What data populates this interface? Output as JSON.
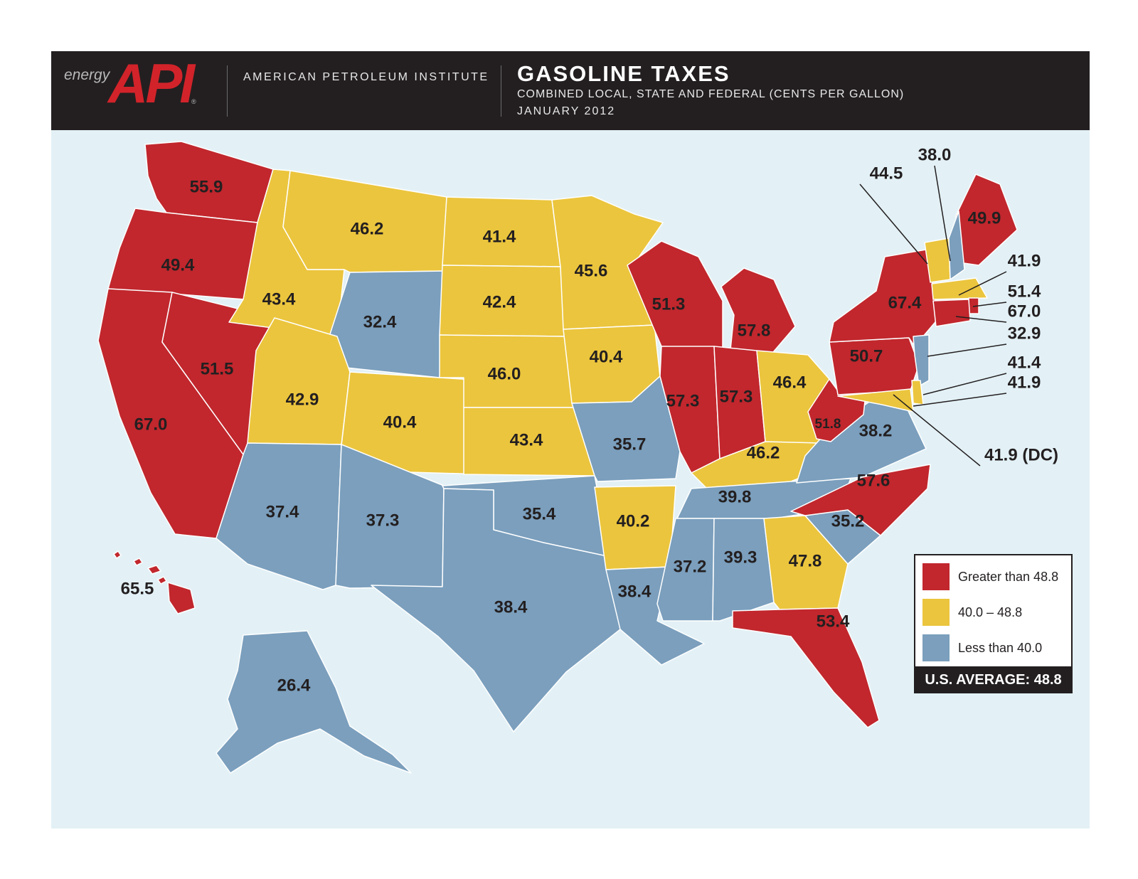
{
  "header": {
    "logo_word": "energy",
    "logo_mark": "API",
    "logo_registered": "®",
    "organization": "AMERICAN PETROLEUM INSTITUTE",
    "title": "GASOLINE TAXES",
    "subtitle": "COMBINED LOCAL, STATE AND FEDERAL (CENTS PER GALLON)",
    "date": "JANUARY 2012"
  },
  "colors": {
    "greater": "#c1272d",
    "middle": "#ebc53d",
    "less": "#7b9fbd",
    "water": "#e3f1f6",
    "header_bg": "#231f20"
  },
  "legend": {
    "items": [
      {
        "label": "Greater than 48.8",
        "category": "greater"
      },
      {
        "label": "40.0 – 48.8",
        "category": "middle"
      },
      {
        "label": "Less than 40.0",
        "category": "less"
      }
    ],
    "average": "U.S. AVERAGE: 48.8"
  },
  "states": [
    {
      "id": "WA",
      "value": "55.9",
      "category": "greater"
    },
    {
      "id": "OR",
      "value": "49.4",
      "category": "greater"
    },
    {
      "id": "CA",
      "value": "67.0",
      "category": "greater"
    },
    {
      "id": "NV",
      "value": "51.5",
      "category": "greater"
    },
    {
      "id": "ID",
      "value": "43.4",
      "category": "middle"
    },
    {
      "id": "MT",
      "value": "46.2",
      "category": "middle"
    },
    {
      "id": "WY",
      "value": "32.4",
      "category": "less"
    },
    {
      "id": "UT",
      "value": "42.9",
      "category": "middle"
    },
    {
      "id": "CO",
      "value": "40.4",
      "category": "middle"
    },
    {
      "id": "AZ",
      "value": "37.4",
      "category": "less"
    },
    {
      "id": "NM",
      "value": "37.3",
      "category": "less"
    },
    {
      "id": "ND",
      "value": "41.4",
      "category": "middle"
    },
    {
      "id": "SD",
      "value": "42.4",
      "category": "middle"
    },
    {
      "id": "NE",
      "value": "46.0",
      "category": "middle"
    },
    {
      "id": "KS",
      "value": "43.4",
      "category": "middle"
    },
    {
      "id": "OK",
      "value": "35.4",
      "category": "less"
    },
    {
      "id": "TX",
      "value": "38.4",
      "category": "less"
    },
    {
      "id": "MN",
      "value": "45.6",
      "category": "middle"
    },
    {
      "id": "IA",
      "value": "40.4",
      "category": "middle"
    },
    {
      "id": "MO",
      "value": "35.7",
      "category": "less"
    },
    {
      "id": "AR",
      "value": "40.2",
      "category": "middle"
    },
    {
      "id": "LA",
      "value": "38.4",
      "category": "less"
    },
    {
      "id": "WI",
      "value": "51.3",
      "category": "greater"
    },
    {
      "id": "IL",
      "value": "57.3",
      "category": "greater"
    },
    {
      "id": "MI",
      "value": "57.8",
      "category": "greater"
    },
    {
      "id": "IN",
      "value": "57.3",
      "category": "greater"
    },
    {
      "id": "OH",
      "value": "46.4",
      "category": "middle"
    },
    {
      "id": "KY",
      "value": "46.2",
      "category": "middle"
    },
    {
      "id": "TN",
      "value": "39.8",
      "category": "less"
    },
    {
      "id": "MS",
      "value": "37.2",
      "category": "less"
    },
    {
      "id": "AL",
      "value": "39.3",
      "category": "less"
    },
    {
      "id": "GA",
      "value": "47.8",
      "category": "middle"
    },
    {
      "id": "FL",
      "value": "53.4",
      "category": "greater"
    },
    {
      "id": "SC",
      "value": "35.2",
      "category": "less"
    },
    {
      "id": "NC",
      "value": "57.6",
      "category": "greater"
    },
    {
      "id": "VA",
      "value": "38.2",
      "category": "less"
    },
    {
      "id": "WV",
      "value": "51.8",
      "category": "greater"
    },
    {
      "id": "PA",
      "value": "50.7",
      "category": "greater"
    },
    {
      "id": "NY",
      "value": "67.4",
      "category": "greater"
    },
    {
      "id": "ME",
      "value": "49.9",
      "category": "greater"
    },
    {
      "id": "VT",
      "value": "44.5",
      "category": "middle"
    },
    {
      "id": "NH",
      "value": "38.0",
      "category": "less"
    },
    {
      "id": "MA",
      "value": "41.9",
      "category": "middle"
    },
    {
      "id": "RI",
      "value": "51.4",
      "category": "greater"
    },
    {
      "id": "CT",
      "value": "67.0",
      "category": "greater"
    },
    {
      "id": "NJ",
      "value": "32.9",
      "category": "less"
    },
    {
      "id": "DE",
      "value": "41.4",
      "category": "middle"
    },
    {
      "id": "MD",
      "value": "41.9",
      "category": "middle"
    },
    {
      "id": "DC",
      "value": "41.9 (DC)",
      "category": "middle"
    },
    {
      "id": "AK",
      "value": "26.4",
      "category": "less"
    },
    {
      "id": "HI",
      "value": "65.5",
      "category": "greater"
    }
  ]
}
